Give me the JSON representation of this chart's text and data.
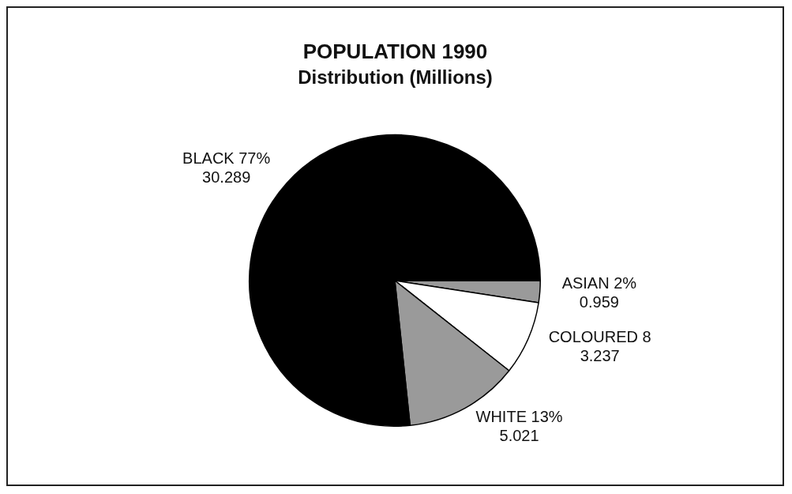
{
  "chart_data": {
    "type": "pie",
    "title": "POPULATION 1990",
    "subtitle": "Distribution (Millions)",
    "categories": [
      "ASIAN 2%",
      "COLOURED 8",
      "WHITE 13%",
      "BLACK 77%"
    ],
    "values": [
      0.959,
      3.237,
      5.021,
      30.289
    ],
    "colors": [
      "#9a9a9a",
      "#ffffff",
      "#9a9a9a",
      "#000000"
    ],
    "data_labels": true,
    "legend": false
  }
}
